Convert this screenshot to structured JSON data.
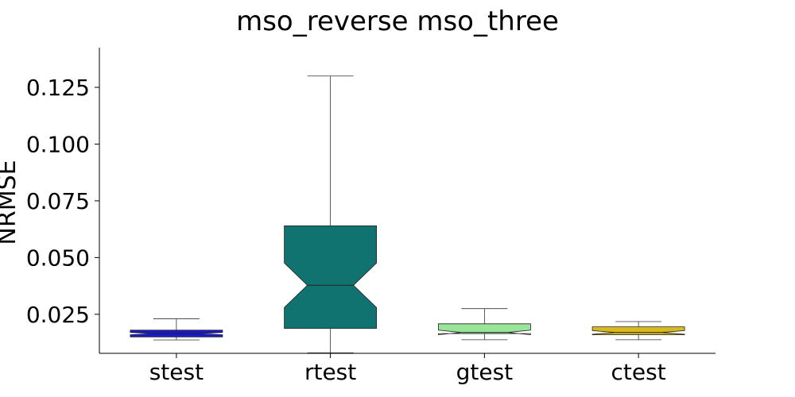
{
  "chart_data": {
    "type": "boxplot",
    "title": "mso_reverse mso_three",
    "xlabel": "",
    "ylabel": "NRMSE",
    "categories": [
      "stest",
      "rtest",
      "gtest",
      "ctest"
    ],
    "ylim": [
      0.0078,
      0.1425
    ],
    "yticks": [
      0.025,
      0.05,
      0.075,
      0.1,
      0.125
    ],
    "ytick_labels": [
      "0.025",
      "0.050",
      "0.075",
      "0.100",
      "0.125"
    ],
    "notched": true,
    "grid": false,
    "boxes": [
      {
        "label": "stest",
        "whisker_low": 0.0137,
        "q1": 0.015,
        "median": 0.0165,
        "q3": 0.018,
        "whisker_high": 0.023,
        "notch_low": 0.016,
        "notch_high": 0.017,
        "color": "#1a1acc"
      },
      {
        "label": "rtest",
        "whisker_low": 0.008,
        "q1": 0.0188,
        "median": 0.0378,
        "q3": 0.064,
        "whisker_high": 0.13,
        "notch_low": 0.028,
        "notch_high": 0.0476,
        "color": "#117370"
      },
      {
        "label": "gtest",
        "whisker_low": 0.0138,
        "q1": 0.0165,
        "median": 0.017,
        "q3": 0.0208,
        "whisker_high": 0.0275,
        "notch_low": 0.016,
        "notch_high": 0.018,
        "color": "#98e498"
      },
      {
        "label": "ctest",
        "whisker_low": 0.0138,
        "q1": 0.016,
        "median": 0.017,
        "q3": 0.0195,
        "whisker_high": 0.0218,
        "notch_low": 0.0162,
        "notch_high": 0.0178,
        "color": "#d8b920"
      }
    ]
  }
}
